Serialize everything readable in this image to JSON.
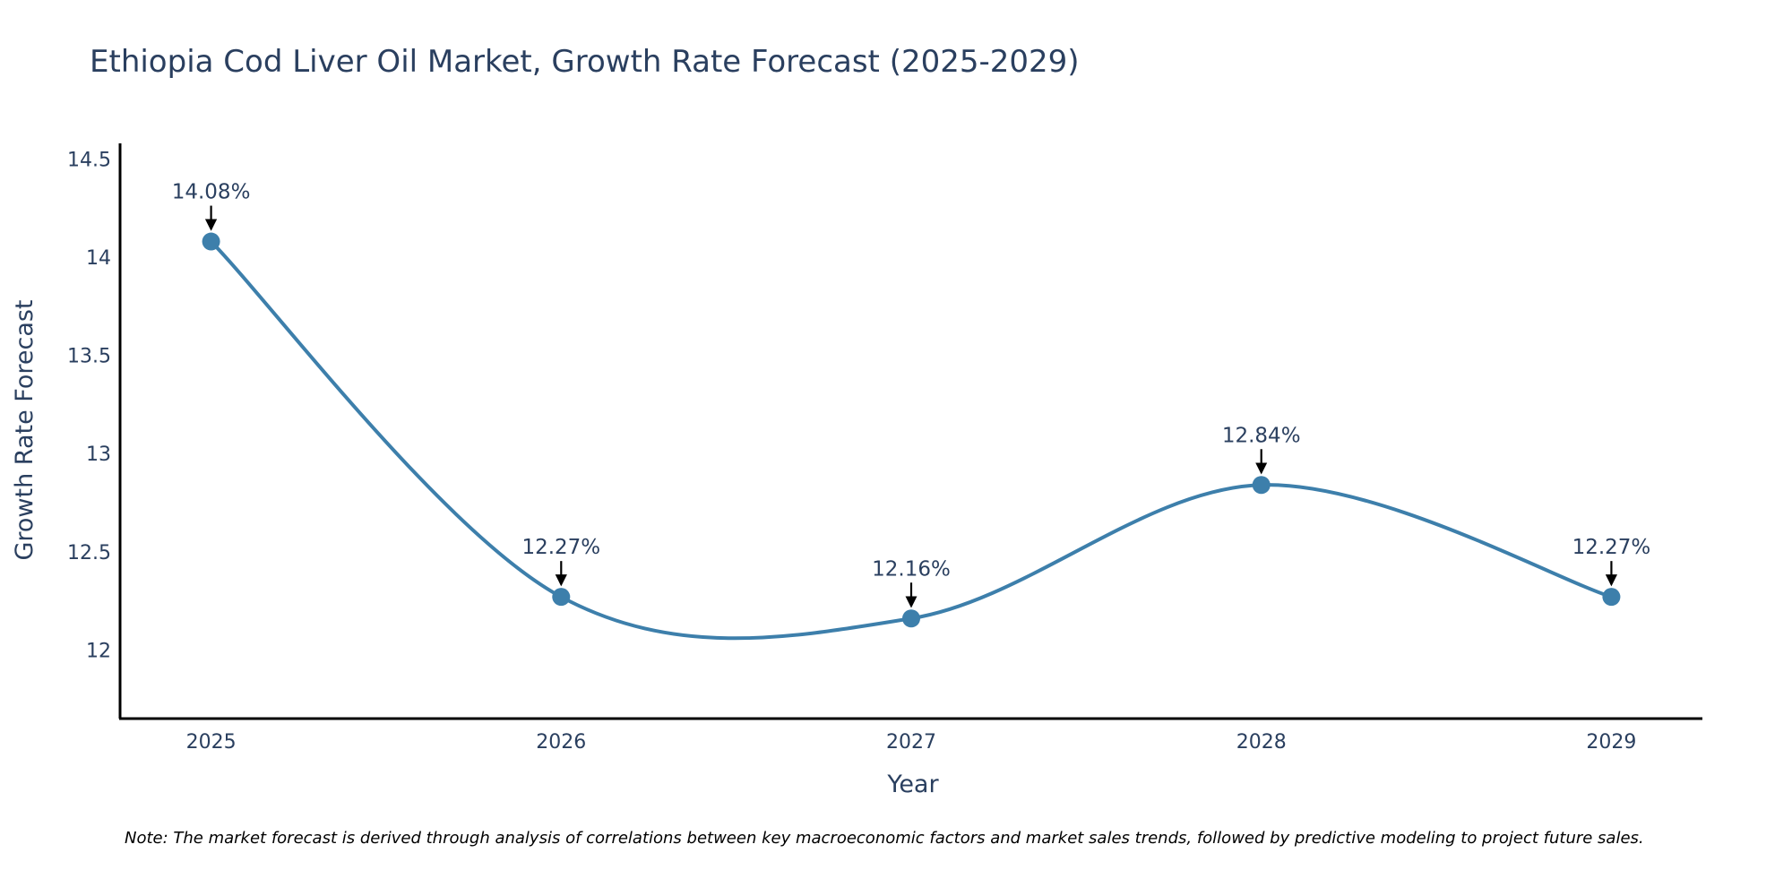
{
  "chart_data": {
    "type": "line",
    "title": "Ethiopia Cod Liver Oil Market, Growth Rate Forecast (2025-2029)",
    "xlabel": "Year",
    "ylabel": "Growth Rate Forecast",
    "categories": [
      "2025",
      "2026",
      "2027",
      "2028",
      "2029"
    ],
    "values": [
      14.08,
      12.27,
      12.16,
      12.84,
      12.27
    ],
    "data_labels": [
      "14.08%",
      "12.27%",
      "12.16%",
      "12.84%",
      "12.27%"
    ],
    "y_ticks": [
      12,
      12.5,
      13,
      13.5,
      14,
      14.5
    ],
    "y_tick_labels": [
      "12",
      "12.5",
      "13",
      "13.5",
      "14",
      "14.5"
    ],
    "ylim": [
      11.65,
      14.58
    ],
    "x_range": [
      -0.26,
      4.26
    ],
    "grid": false,
    "line_color": "#3d7fab",
    "marker_color": "#3d7fab",
    "arrow_color": "#000000",
    "note": "Note: The market forecast is derived through analysis of correlations between key macroeconomic factors and market sales trends, followed by predictive modeling to project future sales."
  }
}
